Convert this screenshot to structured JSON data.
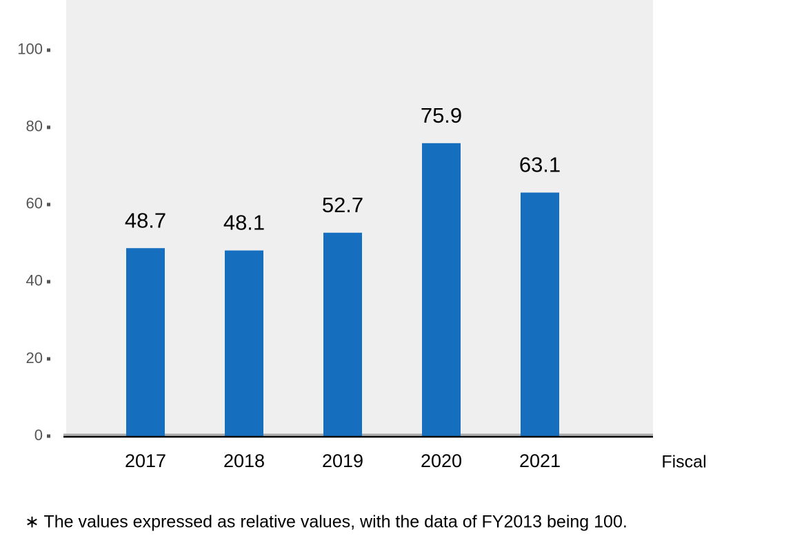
{
  "chart_data": {
    "type": "bar",
    "categories": [
      "2017",
      "2018",
      "2019",
      "2020",
      "2021"
    ],
    "values": [
      48.7,
      48.1,
      52.7,
      75.9,
      63.1
    ],
    "color": "#156ebe",
    "ylim": [
      0,
      113
    ],
    "yticks": [
      0,
      20,
      40,
      60,
      80,
      100
    ],
    "xlabel": "Fiscal",
    "note": "∗ The values expressed as relative values, with the data of FY2013 being 100."
  }
}
